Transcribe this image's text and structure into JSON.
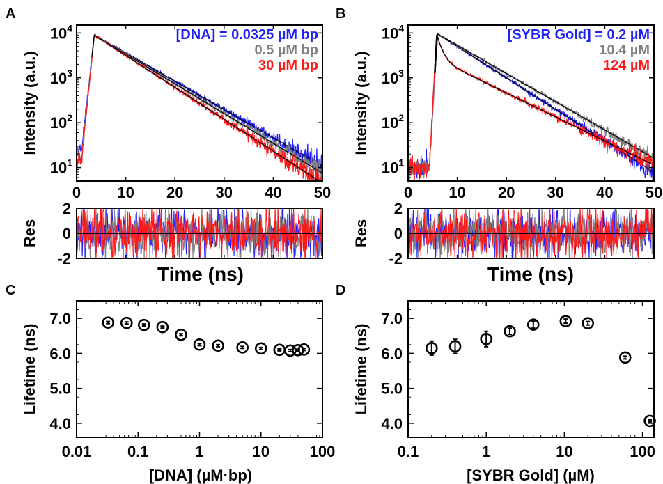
{
  "panels": {
    "A": "A",
    "B": "B",
    "C": "C",
    "D": "D"
  },
  "colors": {
    "series_low": "#1f1fff",
    "series_mid": "#808080",
    "series_high": "#ff1a1a",
    "fit": "#000000",
    "marker": "#000000"
  },
  "chart_data": [
    {
      "id": "A",
      "type": "line",
      "xlabel": "",
      "ylabel": "Intensity (a.u.)",
      "xlim": [
        0,
        50
      ],
      "ylim": [
        5,
        15000
      ],
      "yscale": "log",
      "xticks": [
        "0",
        "10",
        "20",
        "30",
        "40",
        "50"
      ],
      "grid": false,
      "legend_position": "top-right",
      "series": [
        {
          "name": "[DNA] = 0.0325 µM bp",
          "color": "#1f1fff",
          "rise": 1.0,
          "peak_x": 3.6,
          "peak_y": 9000,
          "baseline": 25,
          "tau1": 6.9,
          "tau2": 6.9,
          "frac_fast": 0.0,
          "tail": 30
        },
        {
          "name": "0.5 µM bp",
          "color": "#808080",
          "rise": 1.0,
          "peak_x": 3.6,
          "peak_y": 9000,
          "baseline": 18,
          "tau1": 6.55,
          "tau2": 6.55,
          "frac_fast": 0.0,
          "tail": 22
        },
        {
          "name": "30 µM bp",
          "color": "#ff1a1a",
          "rise": 1.0,
          "peak_x": 3.6,
          "peak_y": 9000,
          "baseline": 14,
          "tau1": 6.1,
          "tau2": 6.1,
          "frac_fast": 0.0,
          "tail": 9
        }
      ]
    },
    {
      "id": "A-res",
      "type": "line",
      "xlabel": "Time (ns)",
      "ylabel": "Res",
      "xlim": [
        0,
        50
      ],
      "ylim": [
        -2,
        2
      ],
      "yticks": [
        "2",
        "0",
        "-2"
      ],
      "note_series": [
        "blue",
        "gray",
        "red"
      ]
    },
    {
      "id": "B",
      "type": "line",
      "xlabel": "",
      "ylabel": "Intensity (a.u.)",
      "xlim": [
        0,
        50
      ],
      "ylim": [
        5,
        15000
      ],
      "yscale": "log",
      "xticks": [
        "0",
        "10",
        "20",
        "30",
        "40",
        "50"
      ],
      "grid": false,
      "legend_position": "top-right",
      "series": [
        {
          "name": "[SYBR Gold] = 0.2 µM",
          "color": "#1f1fff",
          "rise": 4.3,
          "peak_x": 6.0,
          "peak_y": 9500,
          "baseline": 10,
          "tau1": 6.2,
          "tau2": 6.2,
          "frac_fast": 0.0,
          "tail": 7
        },
        {
          "name": "10.4 µM",
          "color": "#808080",
          "rise": 4.3,
          "peak_x": 6.0,
          "peak_y": 9500,
          "baseline": 10,
          "tau1": 6.9,
          "tau2": 6.9,
          "frac_fast": 0.0,
          "tail": 25
        },
        {
          "name": "124 µM",
          "color": "#ff1a1a",
          "rise": 4.3,
          "peak_x": 5.8,
          "peak_y": 9500,
          "baseline": 10,
          "tau1": 0.9,
          "tau2": 8.1,
          "frac_fast": 0.72,
          "tail": 14
        }
      ]
    },
    {
      "id": "B-res",
      "type": "line",
      "xlabel": "Time (ns)",
      "ylabel": "Res",
      "xlim": [
        0,
        50
      ],
      "ylim": [
        -2,
        2
      ],
      "yticks": [
        "2",
        "0",
        "-2"
      ],
      "note_series": [
        "blue",
        "gray",
        "red"
      ]
    },
    {
      "id": "C",
      "type": "scatter",
      "xlabel": "[DNA] (µM·bp)",
      "ylabel": "Lifetime (ns)",
      "xscale": "log",
      "xlim": [
        0.01,
        100
      ],
      "ylim": [
        3.6,
        7.5
      ],
      "xticks": [
        "0.01",
        "0.1",
        "1",
        "10",
        "100"
      ],
      "yticks": [
        "4.0",
        "5.0",
        "6.0",
        "7.0"
      ],
      "x": [
        0.0325,
        0.065,
        0.125,
        0.25,
        0.5,
        1,
        2,
        5,
        10,
        20,
        30,
        40,
        50
      ],
      "y": [
        6.88,
        6.87,
        6.81,
        6.75,
        6.53,
        6.25,
        6.22,
        6.17,
        6.14,
        6.1,
        6.08,
        6.09,
        6.11
      ],
      "yerr": [
        0.03,
        0.03,
        0.03,
        0.03,
        0.03,
        0.03,
        0.03,
        0.03,
        0.03,
        0.03,
        0.03,
        0.03,
        0.03
      ]
    },
    {
      "id": "D",
      "type": "scatter",
      "xlabel": "[SYBR Gold] (µM)",
      "ylabel": "Lifetime (ns)",
      "xscale": "log",
      "xlim": [
        0.1,
        140
      ],
      "ylim": [
        3.6,
        7.5
      ],
      "xticks": [
        "0.1",
        "1",
        "10",
        "100"
      ],
      "yticks": [
        "4.0",
        "5.0",
        "6.0",
        "7.0"
      ],
      "x": [
        0.2,
        0.4,
        1.0,
        2.0,
        4.0,
        10.4,
        20,
        60,
        124
      ],
      "y": [
        6.15,
        6.2,
        6.41,
        6.63,
        6.82,
        6.92,
        6.86,
        5.88,
        4.07
      ],
      "yerr": [
        0.2,
        0.2,
        0.22,
        0.09,
        0.1,
        0.06,
        0.05,
        0.04,
        0.03
      ]
    }
  ]
}
